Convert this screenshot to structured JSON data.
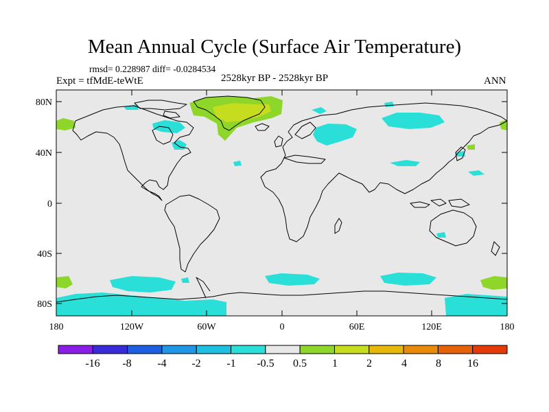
{
  "title": "Mean Annual Cycle (Surface Air Temperature)",
  "stats": "rmsd= 0.228987 diff= -0.0284534",
  "experiment": "Expt = tfMdE-teWtE",
  "period": "2528kyr BP - 2528kyr BP",
  "season": "ANN",
  "lat_axis": {
    "range": [
      -90,
      90
    ],
    "labels": [
      "80N",
      "40N",
      "0",
      "40S",
      "80S"
    ]
  },
  "lon_axis": {
    "range": [
      -180,
      180
    ],
    "labels": [
      "180",
      "120W",
      "60W",
      "0",
      "60E",
      "120E",
      "180"
    ]
  },
  "colorbar": {
    "labels": [
      "-16",
      "-8",
      "-4",
      "-2",
      "-1",
      "-0.5",
      "0.5",
      "1",
      "2",
      "4",
      "8",
      "16"
    ],
    "colors": [
      "#8a1ee6",
      "#3a2bd8",
      "#1d5fe0",
      "#1f96e6",
      "#1ec0e2",
      "#2adfd8",
      "#e8e8e8",
      "#8ed62a",
      "#c6dc1e",
      "#e6b80a",
      "#e88a0a",
      "#e6620a",
      "#e43a0a"
    ]
  },
  "colors": {
    "background": "#e8e8e8",
    "positive_small": "#8ed62a",
    "positive_medium": "#c6dc1e",
    "negative_small": "#2adfd8"
  }
}
